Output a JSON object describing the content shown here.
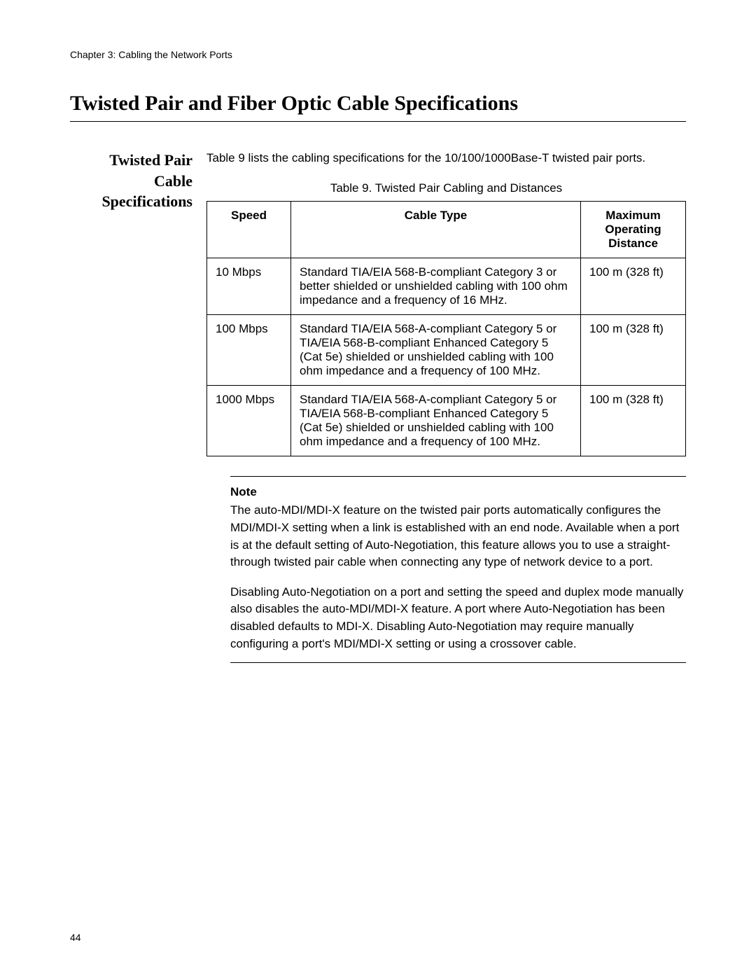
{
  "chapter_header": "Chapter 3: Cabling the Network Ports",
  "main_title": "Twisted Pair and Fiber Optic Cable Specifications",
  "side_heading": "Twisted Pair Cable Specifications",
  "intro_text": "Table 9 lists the cabling specifications for the 10/100/1000Base-T twisted pair ports.",
  "table_caption": "Table 9. Twisted Pair Cabling and Distances",
  "table": {
    "columns": [
      "Speed",
      "Cable Type",
      "Maximum Operating Distance"
    ],
    "rows": [
      {
        "speed": "10 Mbps",
        "cable_type": "Standard TIA/EIA 568-B-compliant Category 3 or better shielded or unshielded cabling with 100 ohm impedance and a frequency of 16 MHz.",
        "distance": "100 m (328 ft)"
      },
      {
        "speed": "100 Mbps",
        "cable_type": "Standard TIA/EIA 568-A-compliant Category 5 or TIA/EIA 568-B-compliant Enhanced Category 5 (Cat 5e) shielded or unshielded cabling with 100 ohm impedance and a frequency of 100 MHz.",
        "distance": "100 m (328 ft)"
      },
      {
        "speed": "1000 Mbps",
        "cable_type": "Standard TIA/EIA 568-A-compliant Category 5 or TIA/EIA 568-B-compliant Enhanced Category 5 (Cat 5e) shielded or unshielded cabling with 100 ohm impedance and a frequency of 100 MHz.",
        "distance": "100 m (328 ft)"
      }
    ]
  },
  "note": {
    "label": "Note",
    "para1": "The auto-MDI/MDI-X feature on the twisted pair ports automatically configures the MDI/MDI-X setting when a link is established with an end node. Available when a port is at the default setting of Auto-Negotiation, this feature allows you to use a straight-through twisted pair cable when connecting any type of network device to a port.",
    "para2": "Disabling Auto-Negotiation on a port and setting the speed and duplex mode manually also disables the auto-MDI/MDI-X feature. A port where Auto-Negotiation has been disabled defaults to MDI-X. Disabling Auto-Negotiation may require manually configuring a port's MDI/MDI-X setting or using a crossover cable."
  },
  "page_number": "44"
}
